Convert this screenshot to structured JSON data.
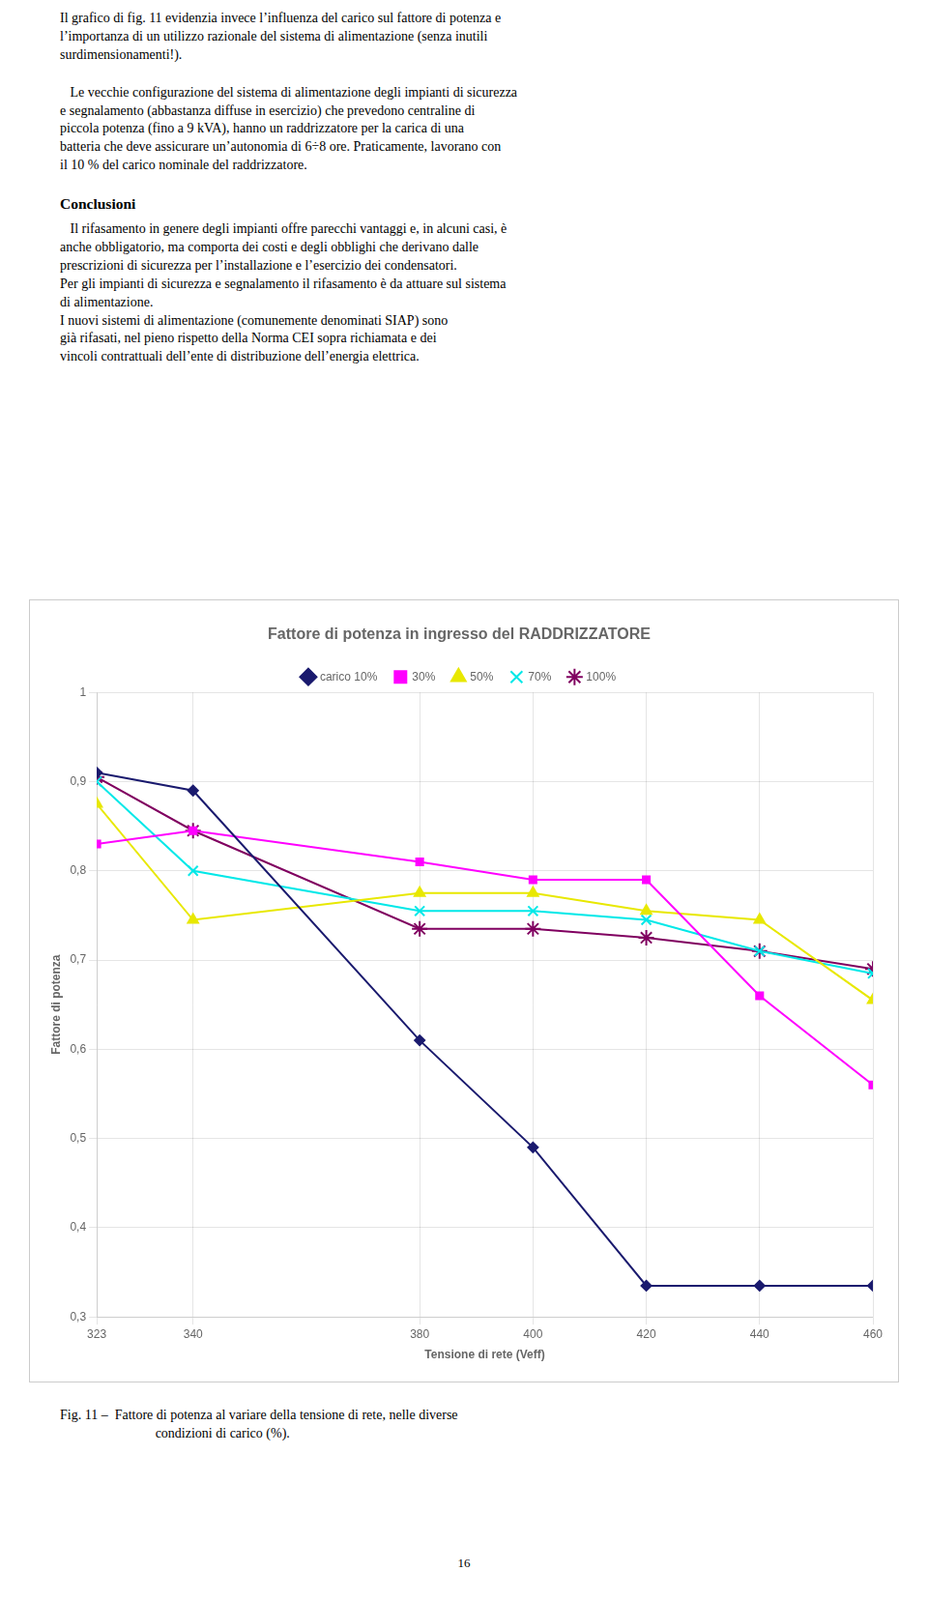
{
  "chart_data": {
    "type": "line",
    "title": "Fattore di potenza in ingresso del RADDRIZZATORE",
    "x_label": "Tensione di rete (Veff)",
    "y_label": "Fattore di potenza",
    "x": [
      323,
      340,
      380,
      400,
      420,
      440,
      460
    ],
    "series": [
      {
        "name": "carico 10%",
        "color": "#1a1a6e",
        "marker": "diamond",
        "values": [
          0.91,
          0.89,
          0.61,
          0.49,
          0.335,
          0.335,
          0.335
        ]
      },
      {
        "name": "30%",
        "color": "#ff00ff",
        "marker": "square",
        "values": [
          0.83,
          0.845,
          0.81,
          0.79,
          0.79,
          0.66,
          0.56
        ]
      },
      {
        "name": "50%",
        "color": "#e8e800",
        "marker": "triangle",
        "values": [
          0.875,
          0.745,
          0.775,
          0.775,
          0.755,
          0.745,
          0.655
        ]
      },
      {
        "name": "70%",
        "color": "#00e8e8",
        "marker": "x",
        "values": [
          0.9,
          0.8,
          0.755,
          0.755,
          0.745,
          0.71,
          0.685
        ]
      },
      {
        "name": "100%",
        "color": "#800060",
        "marker": "star",
        "values": [
          0.905,
          0.845,
          0.735,
          0.735,
          0.725,
          0.71,
          0.69
        ]
      }
    ],
    "xlim": [
      323,
      460
    ],
    "xticks": [
      323,
      340,
      380,
      400,
      420,
      440,
      460
    ],
    "ylim": [
      0.3,
      1.0
    ],
    "yticks": [
      {
        "value": 0.3,
        "label": "0,3"
      },
      {
        "value": 0.4,
        "label": "0,4"
      },
      {
        "value": 0.5,
        "label": "0,5"
      },
      {
        "value": 0.6,
        "label": "0,6"
      },
      {
        "value": 0.7,
        "label": "0,7"
      },
      {
        "value": 0.8,
        "label": "0,8"
      },
      {
        "value": 0.9,
        "label": "0,9"
      },
      1
    ],
    "grid": true,
    "legend": "top",
    "annotations": [
      "Il grafico di fig. 11 evidenzia invece l’influenza del carico sul fattore di potenza e\nl’importanza di un utilizzo razionale del sistema di alimentazione (senza inutili\nsurdimensionamenti!).",
      "   Le vecchie configurazione del sistema di alimentazione degli impianti di sicurezza\ne segnalamento (abbastanza diffuse in esercizio) che prevedono centraline di\npiccola potenza (fino a 9 kVA), hanno un raddrizzatore per la carica di una\nbatteria che deve assicurare un’autonomia di 6÷8 ore. Praticamente, lavorano con\nil 10 % del carico nominale del raddrizzatore.",
      "Conclusioni",
      "   Il rifasamento in genere degli impianti offre parecchi vantaggi e, in alcuni casi, è\nanche obbligatorio, ma comporta dei costi e degli obblighi che derivano dalle\nprescrizioni di sicurezza per l’installazione e l’esercizio dei condensatori.\nPer gli impianti di sicurezza e segnalamento il rifasamento è da attuare sul sistema\ndi alimentazione.\nI nuovi sistemi di alimentazione (comunemente denominati SIAP) sono\ngià rifasati, nel pieno rispetto della Norma CEI sopra richiamata e dei\nvincoli contrattuali dell’ente di distribuzione dell’energia elettrica.",
      "Fig. 11 –",
      "  Fattore di potenza al variare della tensione di rete, nelle diverse\n              condizioni di carico (%).",
      "16"
    ]
  }
}
